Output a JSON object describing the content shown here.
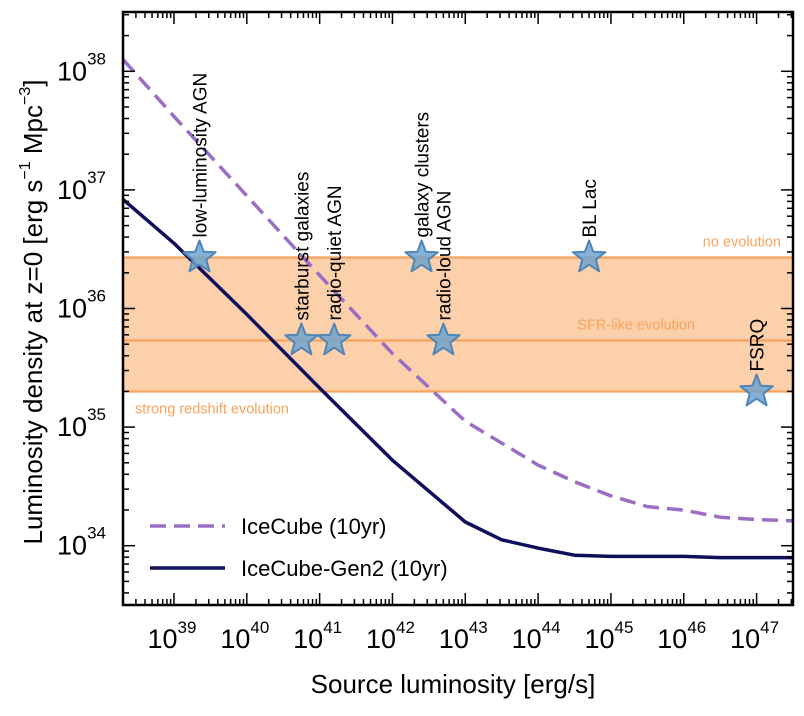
{
  "chart_data": {
    "type": "line",
    "title": "",
    "xlabel": "Source luminosity [erg/s]",
    "ylabel": "Luminosity density at z=0 [erg s^-1 Mpc^-3]",
    "ylabel_parts": {
      "main": "Luminosity density at z=0 [erg s",
      "exp1": "−1",
      "middle": "Mpc",
      "exp2": "−3",
      "end": "]"
    },
    "x_scale": "log",
    "y_scale": "log",
    "xlim_log10": [
      38.3,
      47.5
    ],
    "ylim_log10": [
      33.5,
      38.5
    ],
    "x_ticks": [
      {
        "base": "10",
        "exp": "39",
        "log": 39
      },
      {
        "base": "10",
        "exp": "40",
        "log": 40
      },
      {
        "base": "10",
        "exp": "41",
        "log": 41
      },
      {
        "base": "10",
        "exp": "42",
        "log": 42
      },
      {
        "base": "10",
        "exp": "43",
        "log": 43
      },
      {
        "base": "10",
        "exp": "44",
        "log": 44
      },
      {
        "base": "10",
        "exp": "45",
        "log": 45
      },
      {
        "base": "10",
        "exp": "46",
        "log": 46
      },
      {
        "base": "10",
        "exp": "47",
        "log": 47
      }
    ],
    "y_ticks": [
      {
        "base": "10",
        "exp": "34",
        "log": 34
      },
      {
        "base": "10",
        "exp": "35",
        "log": 35
      },
      {
        "base": "10",
        "exp": "36",
        "log": 36
      },
      {
        "base": "10",
        "exp": "37",
        "log": 37
      },
      {
        "base": "10",
        "exp": "38",
        "log": 38
      }
    ],
    "band": {
      "y_low_log10": 35.3,
      "y_high_log10": 36.43,
      "color": "#fdd0ac",
      "line_color": "#f7a35c"
    },
    "evolution_lines": [
      {
        "label": "no evolution",
        "y_log10": 36.43,
        "label_anchor": "right"
      },
      {
        "label": "SFR-like evolution",
        "y_log10": 35.73,
        "label_anchor": "right"
      },
      {
        "label": "strong redshift evolution",
        "y_log10": 35.3,
        "label_anchor": "left"
      }
    ],
    "series": [
      {
        "name": "IceCube (10yr)",
        "style": "dashed",
        "color": "#9b6ec6",
        "points_log10": [
          [
            38.3,
            38.1
          ],
          [
            39.0,
            37.62
          ],
          [
            40.0,
            36.95
          ],
          [
            41.0,
            36.28
          ],
          [
            42.0,
            35.62
          ],
          [
            43.0,
            35.05
          ],
          [
            44.0,
            34.68
          ],
          [
            44.5,
            34.54
          ],
          [
            45.0,
            34.42
          ],
          [
            45.5,
            34.33
          ],
          [
            46.0,
            34.3
          ],
          [
            46.5,
            34.24
          ],
          [
            47.0,
            34.22
          ],
          [
            47.5,
            34.21
          ]
        ]
      },
      {
        "name": "IceCube-Gen2 (10yr)",
        "style": "solid",
        "color": "#0f0f5c",
        "points_log10": [
          [
            38.3,
            36.92
          ],
          [
            39.0,
            36.55
          ],
          [
            40.0,
            35.95
          ],
          [
            41.0,
            35.33
          ],
          [
            42.0,
            34.72
          ],
          [
            43.0,
            34.2
          ],
          [
            43.5,
            34.05
          ],
          [
            44.0,
            33.98
          ],
          [
            44.5,
            33.92
          ],
          [
            45.0,
            33.91
          ],
          [
            46.0,
            33.91
          ],
          [
            46.5,
            33.9
          ],
          [
            47.5,
            33.9
          ]
        ]
      }
    ],
    "sources": [
      {
        "name": "low-luminosity AGN",
        "x_log10": 39.35,
        "y_log10": 36.43
      },
      {
        "name": "starburst galaxies",
        "x_log10": 40.75,
        "y_log10": 35.73
      },
      {
        "name": "radio-quiet AGN",
        "x_log10": 41.2,
        "y_log10": 35.73
      },
      {
        "name": "galaxy clusters",
        "x_log10": 42.4,
        "y_log10": 36.43
      },
      {
        "name": "radio-loud AGN",
        "x_log10": 42.7,
        "y_log10": 35.73
      },
      {
        "name": "BL Lac",
        "x_log10": 44.7,
        "y_log10": 36.43
      },
      {
        "name": "FSRQ",
        "x_log10": 47.0,
        "y_log10": 35.3
      }
    ],
    "source_marker_color": "#6fa3cf",
    "legend": {
      "position": "bottom-left"
    },
    "grid": false
  }
}
